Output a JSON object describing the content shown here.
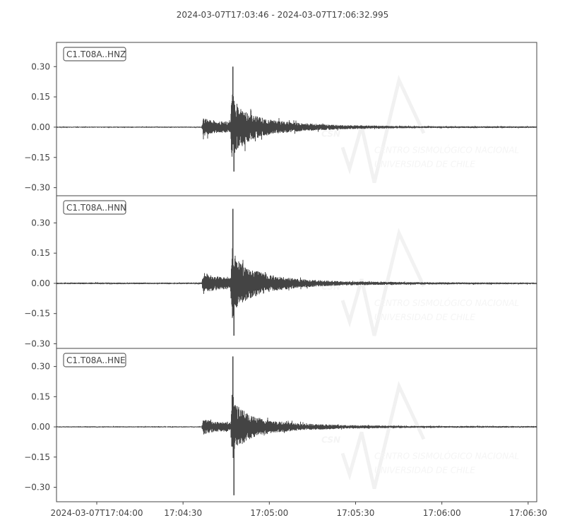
{
  "chart_data": {
    "type": "line",
    "title": "2024-03-07T17:03:46  -  2024-03-07T17:06:32.995",
    "xlim": [
      "2024-03-07T17:03:46",
      "2024-03-07T17:06:32.995"
    ],
    "x_ticks": [
      "2024-03-07T17:04:00",
      "17:04:30",
      "17:05:00",
      "17:05:30",
      "17:06:00",
      "17:06:30"
    ],
    "x_tick_seconds": [
      14,
      44,
      74,
      104,
      134,
      164
    ],
    "y_ticks": [
      "0.30",
      "0.15",
      "0.00",
      "−0.15",
      "−0.30"
    ],
    "y_tick_values": [
      0.3,
      0.15,
      0.0,
      -0.15,
      -0.3
    ],
    "grid": false,
    "line_color": "#444444",
    "series": [
      {
        "name": "C1.T08A..HNZ",
        "ylim": [
          -0.34,
          0.42
        ],
        "peak_max": 0.3,
        "peak_min": -0.22,
        "peak_time": "17:04:47",
        "envelope_time_s": [
          0,
          50.5,
          51,
          55,
          60.5,
          61,
          62,
          64,
          68,
          75,
          85,
          100,
          125,
          167
        ],
        "envelope_amp": [
          0.003,
          0.003,
          0.045,
          0.03,
          0.025,
          0.2,
          0.13,
          0.1,
          0.06,
          0.035,
          0.02,
          0.01,
          0.005,
          0.004
        ]
      },
      {
        "name": "C1.T08A..HNN",
        "ylim": [
          -0.323,
          0.435
        ],
        "peak_max": 0.37,
        "peak_min": -0.26,
        "peak_time": "17:04:47",
        "envelope_time_s": [
          0,
          50.5,
          51,
          55,
          60.5,
          61,
          62,
          64,
          68,
          75,
          85,
          100,
          125,
          167
        ],
        "envelope_amp": [
          0.004,
          0.004,
          0.055,
          0.035,
          0.03,
          0.18,
          0.14,
          0.1,
          0.07,
          0.04,
          0.02,
          0.01,
          0.006,
          0.004
        ]
      },
      {
        "name": "C1.T08A..HNE",
        "ylim": [
          -0.372,
          0.39
        ],
        "peak_max": 0.35,
        "peak_min": -0.34,
        "peak_time": "17:04:47",
        "envelope_time_s": [
          0,
          50.5,
          51,
          55,
          60.5,
          61,
          62,
          64,
          68,
          75,
          85,
          100,
          125,
          167
        ],
        "envelope_amp": [
          0.003,
          0.003,
          0.04,
          0.025,
          0.022,
          0.18,
          0.12,
          0.09,
          0.055,
          0.03,
          0.017,
          0.009,
          0.005,
          0.004
        ]
      }
    ]
  },
  "watermark": {
    "logo": "CSN",
    "line1": "CENTRO SISMOLÓGICO NACIONAL",
    "line2": "UNIVERSIDAD DE CHILE"
  }
}
